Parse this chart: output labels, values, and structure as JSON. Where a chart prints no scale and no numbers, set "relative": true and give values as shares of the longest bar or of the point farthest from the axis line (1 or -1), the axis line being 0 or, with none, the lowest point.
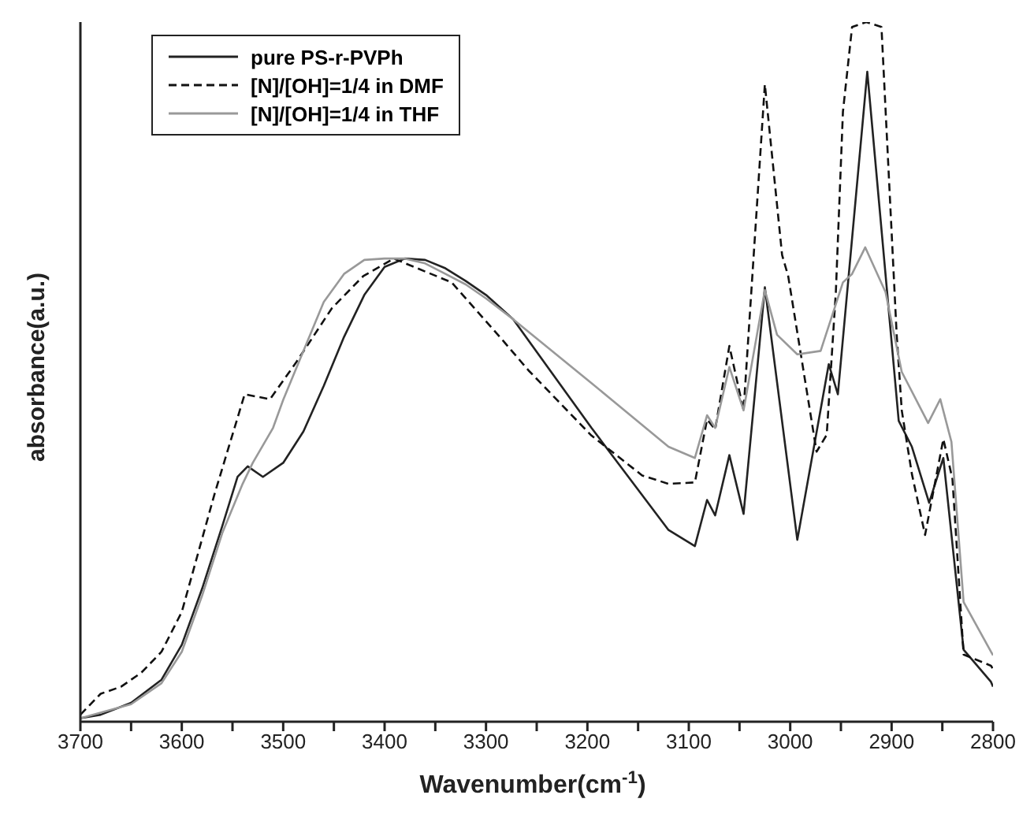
{
  "chart_data": {
    "type": "line",
    "xlabel": "Wavenumber(cm$^{-1}$)",
    "ylabel": "absorbance(a.u.)",
    "relative": true,
    "xlim": [
      3700,
      2800
    ],
    "xticks": [
      3700,
      {
        "value": 3650,
        "label": null
      },
      3600,
      {
        "value": 3550,
        "label": null
      },
      3500,
      {
        "value": 3450,
        "label": null
      },
      3400,
      {
        "value": 3350,
        "label": null
      },
      3300,
      {
        "value": 3250,
        "label": null
      },
      3200,
      {
        "value": 3150,
        "label": null
      },
      3100,
      {
        "value": 3050,
        "label": null
      },
      3000,
      {
        "value": 2950,
        "label": null
      },
      2900,
      {
        "value": 2850,
        "label": null
      },
      2800
    ],
    "legend": "top left",
    "grid": false,
    "marker": "none",
    "series": [
      {
        "name": "pure PS-r-PVPh",
        "color": "#222222",
        "line_style": "solid",
        "x": [
          3700,
          3680,
          3650,
          3620,
          3600,
          3580,
          3560,
          3545,
          3535,
          3520,
          3500,
          3480,
          3460,
          3440,
          3420,
          3400,
          3380,
          3360,
          3340,
          3320,
          3300,
          3273,
          3196,
          3120,
          3094,
          3082,
          3074,
          3060,
          3046,
          3025,
          2993,
          2962,
          2953,
          2924,
          2893,
          2880,
          2863,
          2849,
          2829,
          2802,
          2800
        ],
        "values": [
          0.005,
          0.01,
          0.027,
          0.06,
          0.11,
          0.19,
          0.28,
          0.35,
          0.365,
          0.35,
          0.37,
          0.415,
          0.48,
          0.55,
          0.61,
          0.65,
          0.662,
          0.66,
          0.648,
          0.63,
          0.61,
          0.575,
          0.42,
          0.274,
          0.251,
          0.317,
          0.295,
          0.381,
          0.297,
          0.621,
          0.26,
          0.511,
          0.468,
          0.929,
          0.43,
          0.393,
          0.313,
          0.377,
          0.103,
          0.057,
          0.05
        ]
      },
      {
        "name": "[N]/[OH]=1/4 in DMF",
        "color": "#111111",
        "line_style": "dashed",
        "x": [
          3700,
          3680,
          3660,
          3640,
          3620,
          3600,
          3568,
          3538,
          3513,
          3487,
          3452,
          3421,
          3391,
          3334,
          3284,
          3258,
          3196,
          3146,
          3120,
          3094,
          3082,
          3074,
          3060,
          3046,
          3025,
          3008,
          3002,
          2974,
          2964,
          2955,
          2948,
          2939,
          2925,
          2910,
          2895,
          2890,
          2880,
          2867,
          2849,
          2840,
          2829,
          2802,
          2800
        ],
        "values": [
          0.01,
          0.04,
          0.05,
          0.07,
          0.1,
          0.157,
          0.324,
          0.468,
          0.461,
          0.514,
          0.591,
          0.637,
          0.662,
          0.628,
          0.546,
          0.502,
          0.409,
          0.352,
          0.34,
          0.342,
          0.432,
          0.418,
          0.537,
          0.445,
          0.911,
          0.667,
          0.637,
          0.386,
          0.41,
          0.614,
          0.872,
          0.993,
          1.0,
          0.993,
          0.553,
          0.445,
          0.354,
          0.267,
          0.404,
          0.347,
          0.096,
          0.08,
          0.075
        ]
      },
      {
        "name": "[N]/[OH]=1/4 in THF",
        "color": "#999999",
        "line_style": "solid",
        "x": [
          3700,
          3650,
          3620,
          3600,
          3580,
          3560,
          3540,
          3530,
          3510,
          3500,
          3480,
          3460,
          3440,
          3420,
          3400,
          3380,
          3360,
          3340,
          3320,
          3300,
          3273,
          3196,
          3120,
          3094,
          3082,
          3074,
          3060,
          3046,
          3025,
          3013,
          2993,
          2970,
          2948,
          2939,
          2926,
          2906,
          2890,
          2864,
          2852,
          2841,
          2829,
          2802,
          2800
        ],
        "values": [
          0.005,
          0.025,
          0.055,
          0.1,
          0.18,
          0.27,
          0.34,
          0.37,
          0.42,
          0.46,
          0.53,
          0.6,
          0.64,
          0.66,
          0.662,
          0.662,
          0.655,
          0.64,
          0.625,
          0.605,
          0.575,
          0.484,
          0.393,
          0.377,
          0.438,
          0.42,
          0.507,
          0.445,
          0.617,
          0.553,
          0.525,
          0.53,
          0.628,
          0.64,
          0.678,
          0.614,
          0.5,
          0.427,
          0.461,
          0.4,
          0.171,
          0.1,
          0.095
        ]
      }
    ]
  }
}
